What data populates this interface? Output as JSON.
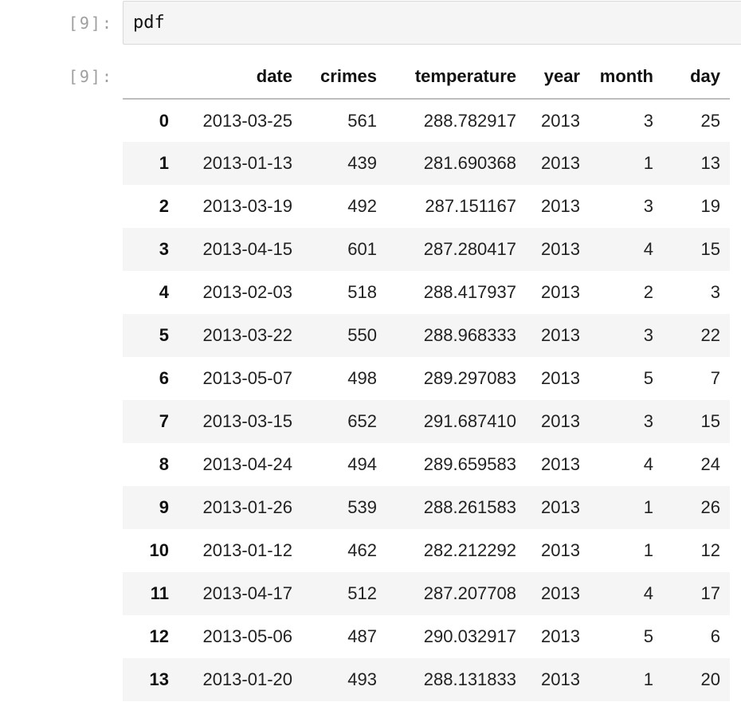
{
  "input_cell": {
    "prompt": "[9]:",
    "code": "pdf"
  },
  "output_cell": {
    "prompt": "[9]:",
    "table": {
      "columns": [
        "",
        "date",
        "crimes",
        "temperature",
        "year",
        "month",
        "day"
      ],
      "rows": [
        {
          "index": "0",
          "date": "2013-03-25",
          "crimes": "561",
          "temperature": "288.782917",
          "year": "2013",
          "month": "3",
          "day": "25"
        },
        {
          "index": "1",
          "date": "2013-01-13",
          "crimes": "439",
          "temperature": "281.690368",
          "year": "2013",
          "month": "1",
          "day": "13"
        },
        {
          "index": "2",
          "date": "2013-03-19",
          "crimes": "492",
          "temperature": "287.151167",
          "year": "2013",
          "month": "3",
          "day": "19"
        },
        {
          "index": "3",
          "date": "2013-04-15",
          "crimes": "601",
          "temperature": "287.280417",
          "year": "2013",
          "month": "4",
          "day": "15"
        },
        {
          "index": "4",
          "date": "2013-02-03",
          "crimes": "518",
          "temperature": "288.417937",
          "year": "2013",
          "month": "2",
          "day": "3"
        },
        {
          "index": "5",
          "date": "2013-03-22",
          "crimes": "550",
          "temperature": "288.968333",
          "year": "2013",
          "month": "3",
          "day": "22"
        },
        {
          "index": "6",
          "date": "2013-05-07",
          "crimes": "498",
          "temperature": "289.297083",
          "year": "2013",
          "month": "5",
          "day": "7"
        },
        {
          "index": "7",
          "date": "2013-03-15",
          "crimes": "652",
          "temperature": "291.687410",
          "year": "2013",
          "month": "3",
          "day": "15"
        },
        {
          "index": "8",
          "date": "2013-04-24",
          "crimes": "494",
          "temperature": "289.659583",
          "year": "2013",
          "month": "4",
          "day": "24"
        },
        {
          "index": "9",
          "date": "2013-01-26",
          "crimes": "539",
          "temperature": "288.261583",
          "year": "2013",
          "month": "1",
          "day": "26"
        },
        {
          "index": "10",
          "date": "2013-01-12",
          "crimes": "462",
          "temperature": "282.212292",
          "year": "2013",
          "month": "1",
          "day": "12"
        },
        {
          "index": "11",
          "date": "2013-04-17",
          "crimes": "512",
          "temperature": "287.207708",
          "year": "2013",
          "month": "4",
          "day": "17"
        },
        {
          "index": "12",
          "date": "2013-05-06",
          "crimes": "487",
          "temperature": "290.032917",
          "year": "2013",
          "month": "5",
          "day": "6"
        },
        {
          "index": "13",
          "date": "2013-01-20",
          "crimes": "493",
          "temperature": "288.131833",
          "year": "2013",
          "month": "1",
          "day": "20"
        }
      ]
    }
  }
}
